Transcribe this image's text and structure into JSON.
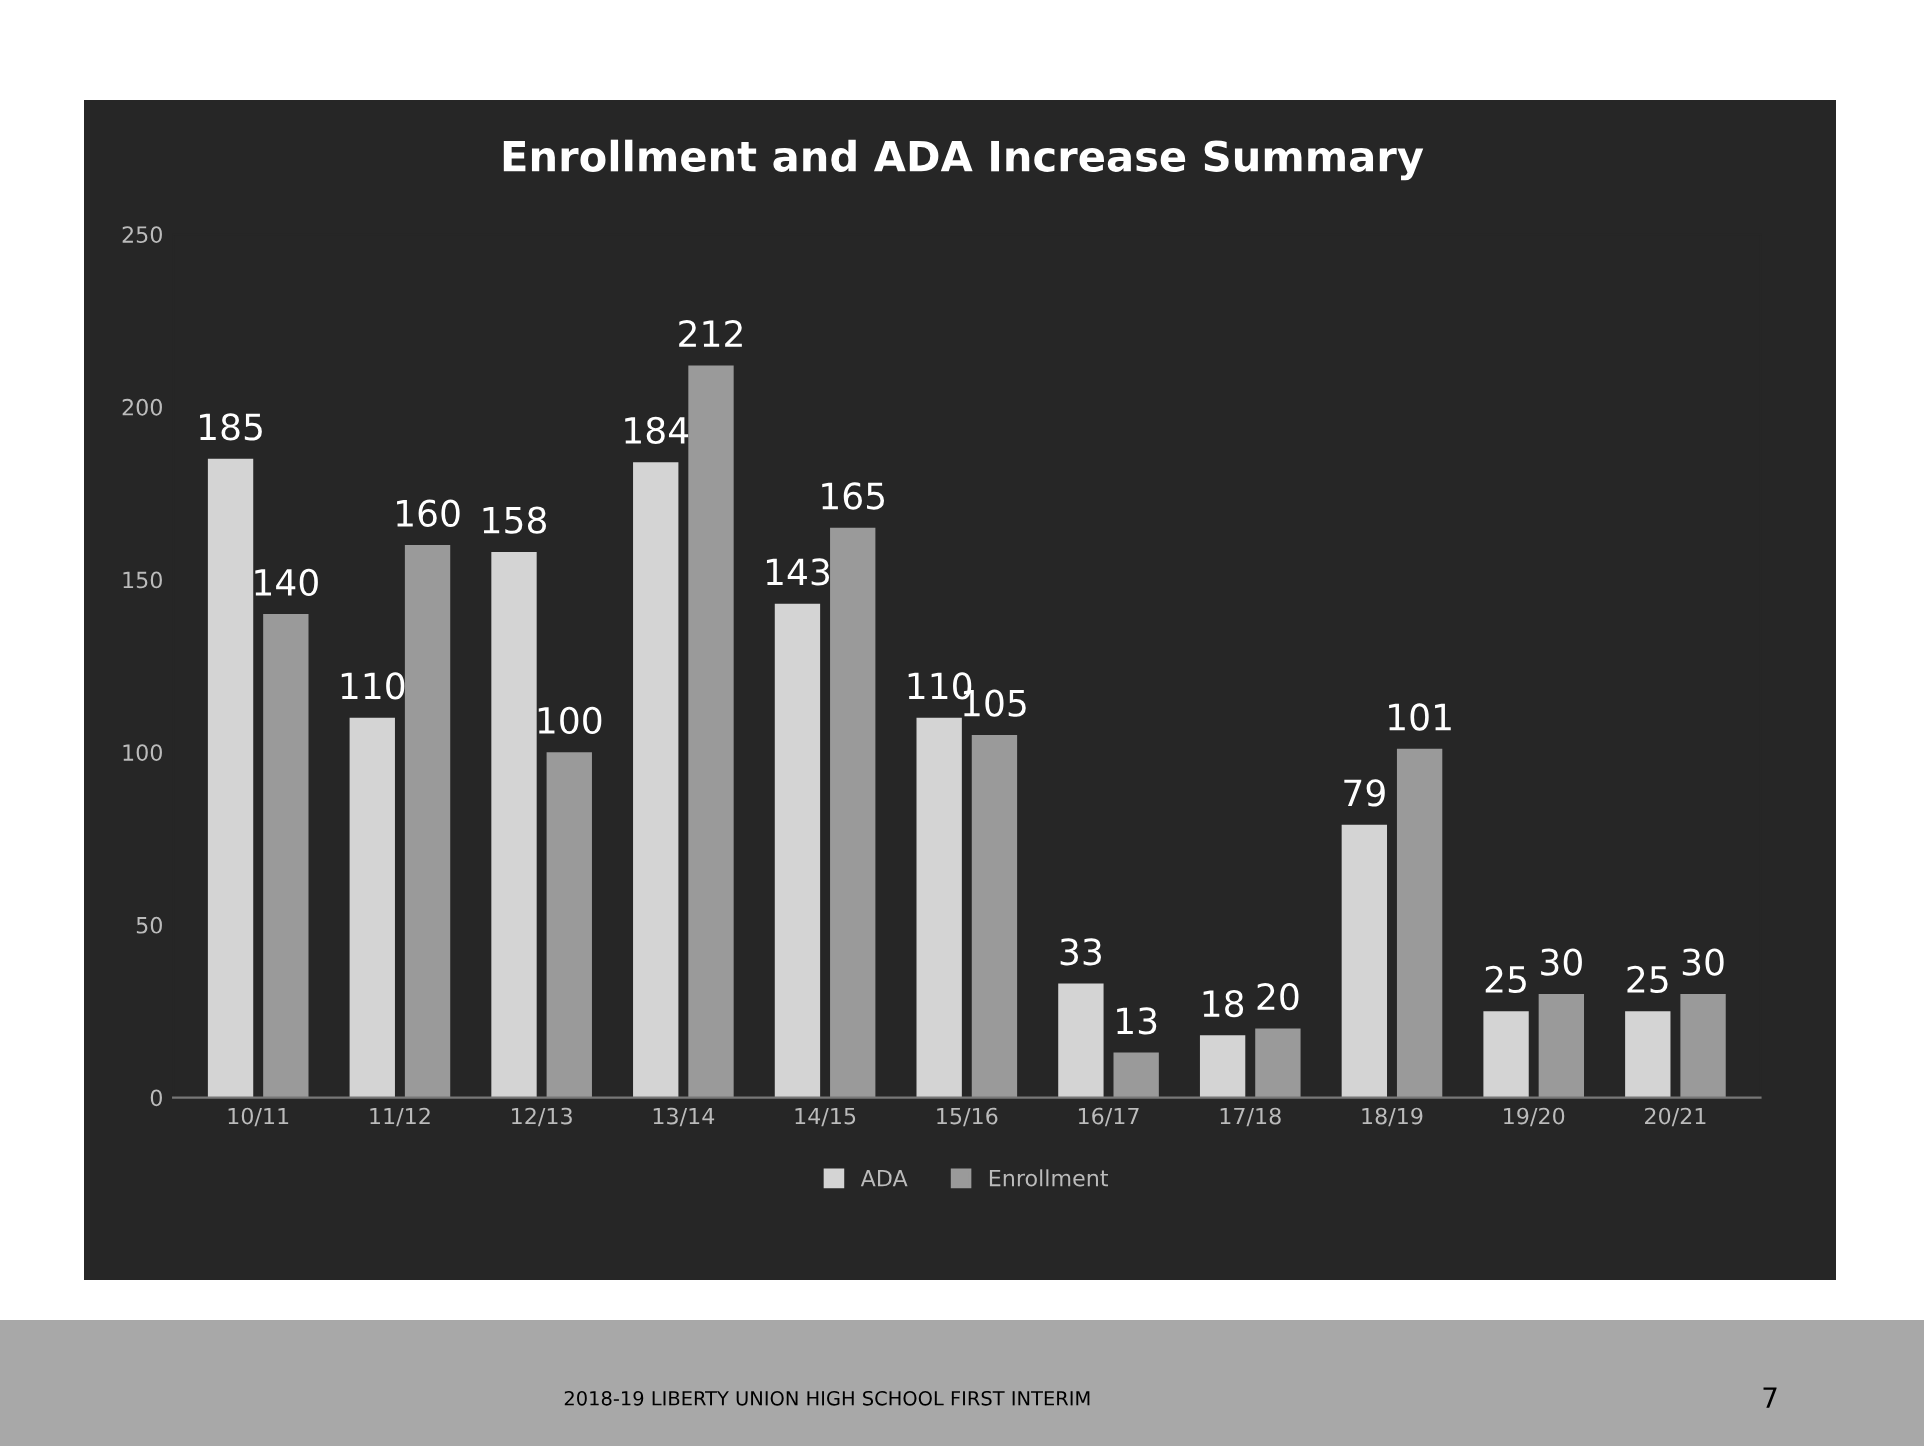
{
  "chart_data": {
    "type": "bar",
    "title": "Enrollment and ADA Increase Summary",
    "categories": [
      "10/11",
      "11/12",
      "12/13",
      "13/14",
      "14/15",
      "15/16",
      "16/17",
      "17/18",
      "18/19",
      "19/20",
      "20/21"
    ],
    "series": [
      {
        "name": "ADA",
        "color": "#d4d4d4",
        "values": [
          185,
          110,
          158,
          184,
          143,
          110,
          33,
          18,
          79,
          25,
          25
        ]
      },
      {
        "name": "Enrollment",
        "color": "#9a9a9a",
        "values": [
          140,
          160,
          100,
          212,
          165,
          105,
          13,
          20,
          101,
          30,
          30
        ]
      }
    ],
    "ylim": [
      0,
      250
    ],
    "yticks": [
      0,
      50,
      100,
      150,
      200,
      250
    ],
    "grid": false,
    "legend": "bottom",
    "data_labels": true,
    "annotations": [
      "2018-19 LIBERTY UNION HIGH SCHOOL FIRST INTERIM",
      "7"
    ]
  }
}
